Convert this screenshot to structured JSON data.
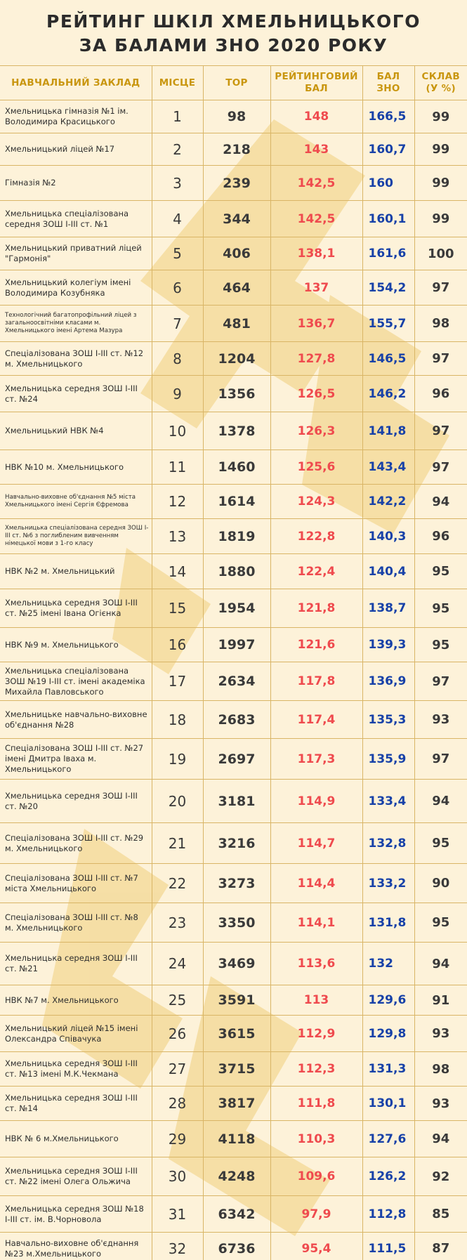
{
  "title": {
    "line1": "РЕЙТИНГ ШКІЛ ХМЕЛЬНИЦЬКОГО",
    "line2": "ЗА БАЛАМИ ЗНО 2020 РОКУ"
  },
  "columns": {
    "name": "НАВЧАЛЬНИЙ ЗАКЛАД",
    "place": "МІСЦЕ",
    "top": "TOP",
    "rating_line1": "РЕЙТИНГОВИЙ",
    "rating_line2": "БАЛ",
    "zno_line1": "БАЛ",
    "zno_line2": "ЗНО",
    "share_line1": "СКЛАВ",
    "share_line2": "(У %)"
  },
  "colors": {
    "background": "#fdf2d9",
    "header_text": "#c9960f",
    "rating": "#ef4a4e",
    "zno": "#1741a8",
    "grid": "#d9b566",
    "watermark": "#f3d894"
  },
  "rows": [
    {
      "name": "Хмельницька гімназія №1 ім. Володимира Красицького",
      "place": "1",
      "top": "98",
      "rating": "148",
      "zno": "166,5",
      "share": "99"
    },
    {
      "name": "Хмельницький ліцей №17",
      "place": "2",
      "top": "218",
      "rating": "143",
      "zno": "160,7",
      "share": "99"
    },
    {
      "name": "Гімназія №2",
      "place": "3",
      "top": "239",
      "rating": "142,5",
      "zno": "160",
      "share": "99"
    },
    {
      "name": "Хмельницька спеціалізована середня ЗОШ І-ІІІ ст. №1",
      "place": "4",
      "top": "344",
      "rating": "142,5",
      "zno": "160,1",
      "share": "99"
    },
    {
      "name": "Хмельницький приватний ліцей \"Гармонія\"",
      "place": "5",
      "top": "406",
      "rating": "138,1",
      "zno": "161,6",
      "share": "100"
    },
    {
      "name": "Хмельницький колегіум імені Володимира Козубняка",
      "place": "6",
      "top": "464",
      "rating": "137",
      "zno": "154,2",
      "share": "97"
    },
    {
      "name": "Технологічний багатопрофільний ліцей з загальноосвітніми класами м. Хмельницького імені Артема Мазура",
      "place": "7",
      "top": "481",
      "rating": "136,7",
      "zno": "155,7",
      "share": "98",
      "small": true
    },
    {
      "name": "Спеціалізована ЗОШ І-ІІІ ст. №12 м. Хмельницького",
      "place": "8",
      "top": "1204",
      "rating": "127,8",
      "zno": "146,5",
      "share": "97"
    },
    {
      "name": "Хмельницька середня ЗОШ І-ІІІ ст. №24",
      "place": "9",
      "top": "1356",
      "rating": "126,5",
      "zno": "146,2",
      "share": "96"
    },
    {
      "name": "Хмельницький НВК №4",
      "place": "10",
      "top": "1378",
      "rating": "126,3",
      "zno": "141,8",
      "share": "97"
    },
    {
      "name": "НВК №10 м. Хмельницького",
      "place": "11",
      "top": "1460",
      "rating": "125,6",
      "zno": "143,4",
      "share": "97"
    },
    {
      "name": "Навчально-виховне об'єднання №5 міста Хмельницького імені Сергія Єфремова",
      "place": "12",
      "top": "1614",
      "rating": "124,3",
      "zno": "142,2",
      "share": "94",
      "small": true
    },
    {
      "name": "Хмельницька спеціалізована середня ЗОШ І-ІІІ ст. №6 з поглибленим вивченням німецької мови з 1-го класу",
      "place": "13",
      "top": "1819",
      "rating": "122,8",
      "zno": "140,3",
      "share": "96",
      "small": true
    },
    {
      "name": "НВК №2 м. Хмельницький",
      "place": "14",
      "top": "1880",
      "rating": "122,4",
      "zno": "140,4",
      "share": "95"
    },
    {
      "name": "Хмельницька середня ЗОШ І-ІІІ ст. №25 імені Івана Огієнка",
      "place": "15",
      "top": "1954",
      "rating": "121,8",
      "zno": "138,7",
      "share": "95"
    },
    {
      "name": "НВК №9 м. Хмельницького",
      "place": "16",
      "top": "1997",
      "rating": "121,6",
      "zno": "139,3",
      "share": "95"
    },
    {
      "name": "Хмельницька спеціалізована ЗОШ №19 І-ІІІ ст. імені академіка Михайла Павловського",
      "place": "17",
      "top": "2634",
      "rating": "117,8",
      "zno": "136,9",
      "share": "97"
    },
    {
      "name": "Хмельницьке навчально-виховне об'єднання №28",
      "place": "18",
      "top": "2683",
      "rating": "117,4",
      "zno": "135,3",
      "share": "93"
    },
    {
      "name": "Спеціалізована ЗОШ І-ІІІ ст. №27 імені Дмитра Іваха м. Хмельницького",
      "place": "19",
      "top": "2697",
      "rating": "117,3",
      "zno": "135,9",
      "share": "97"
    },
    {
      "name": "Хмельницька середня ЗОШ І-ІІІ ст. №20",
      "place": "20",
      "top": "3181",
      "rating": "114,9",
      "zno": "133,4",
      "share": "94"
    },
    {
      "name": "Спеціалізована ЗОШ І-ІІІ ст. №29 м. Хмельницького",
      "place": "21",
      "top": "3216",
      "rating": "114,7",
      "zno": "132,8",
      "share": "95"
    },
    {
      "name": "Спеціалізована ЗОШ І-ІІІ ст. №7 міста Хмельницького",
      "place": "22",
      "top": "3273",
      "rating": "114,4",
      "zno": "133,2",
      "share": "90"
    },
    {
      "name": "Спеціалізована ЗОШ І-ІІІ ст. №8 м. Хмельницького",
      "place": "23",
      "top": "3350",
      "rating": "114,1",
      "zno": "131,8",
      "share": "95"
    },
    {
      "name": "Хмельницька середня ЗОШ І-ІІІ ст. №21",
      "place": "24",
      "top": "3469",
      "rating": "113,6",
      "zno": "132",
      "share": "94"
    },
    {
      "name": "НВК №7 м. Хмельницького",
      "place": "25",
      "top": "3591",
      "rating": "113",
      "zno": "129,6",
      "share": "91"
    },
    {
      "name": "Хмельницький ліцей №15 імені Олександра Співачука",
      "place": "26",
      "top": "3615",
      "rating": "112,9",
      "zno": "129,8",
      "share": "93"
    },
    {
      "name": "Хмельницька середня ЗОШ І-ІІІ ст. №13 імені М.К.Чекмана",
      "place": "27",
      "top": "3715",
      "rating": "112,3",
      "zno": "131,3",
      "share": "98"
    },
    {
      "name": "Хмельницька середня ЗОШ І-ІІІ ст. №14",
      "place": "28",
      "top": "3817",
      "rating": "111,8",
      "zno": "130,1",
      "share": "93"
    },
    {
      "name": "НВК № 6 м.Хмельницького",
      "place": "29",
      "top": "4118",
      "rating": "110,3",
      "zno": "127,6",
      "share": "94"
    },
    {
      "name": "Хмельницька середня ЗОШ І-ІІІ ст. №22 імені Олега Ольжича",
      "place": "30",
      "top": "4248",
      "rating": "109,6",
      "zno": "126,2",
      "share": "92"
    },
    {
      "name": "Хмельницька середня ЗОШ №18 І-ІІІ ст. ім. В.Чорновола",
      "place": "31",
      "top": "6342",
      "rating": "97,9",
      "zno": "112,8",
      "share": "85"
    },
    {
      "name": "Навчально-виховне об'єднання №23 м.Хмельницького",
      "place": "32",
      "top": "6736",
      "rating": "95,4",
      "zno": "111,5",
      "share": "87"
    }
  ]
}
